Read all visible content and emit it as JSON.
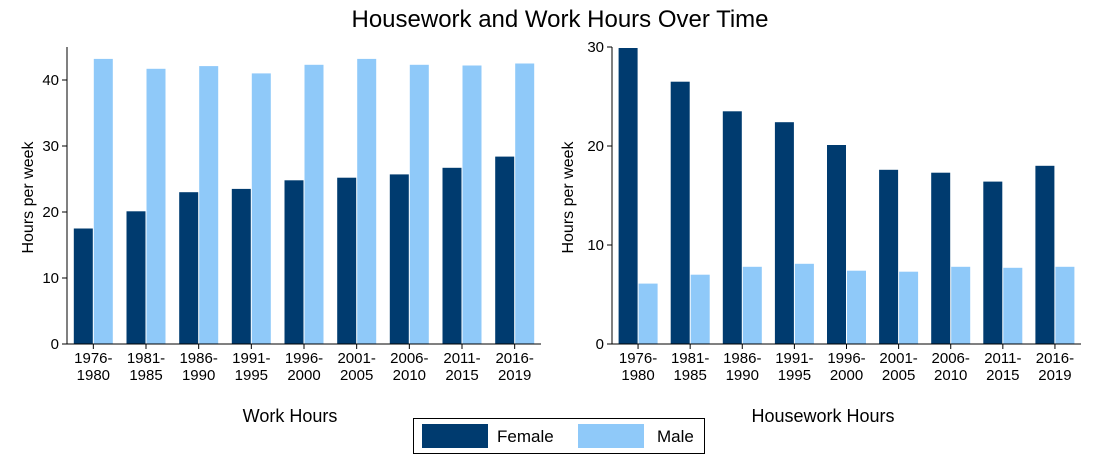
{
  "title": "Housework and Work Hours Over Time",
  "colors": {
    "female": "#003B6F",
    "male": "#8FC9F9"
  },
  "legend": {
    "female": "Female",
    "male": "Male"
  },
  "chart_data": [
    {
      "type": "bar",
      "title": "Work Hours",
      "ylabel": "Hours per week",
      "xlabel": "",
      "ylim": [
        0,
        45
      ],
      "yticks": [
        0,
        10,
        20,
        30,
        40
      ],
      "categories": [
        [
          "1976-",
          "1980"
        ],
        [
          "1981-",
          "1985"
        ],
        [
          "1986-",
          "1990"
        ],
        [
          "1991-",
          "1995"
        ],
        [
          "1996-",
          "2000"
        ],
        [
          "2001-",
          "2005"
        ],
        [
          "2006-",
          "2010"
        ],
        [
          "2011-",
          "2015"
        ],
        [
          "2016-",
          "2019"
        ]
      ],
      "series": [
        {
          "name": "Female",
          "values": [
            17.5,
            20.1,
            23.0,
            23.5,
            24.8,
            25.2,
            25.7,
            26.7,
            28.4
          ]
        },
        {
          "name": "Male",
          "values": [
            43.2,
            41.7,
            42.1,
            41.0,
            42.3,
            43.2,
            42.3,
            42.2,
            42.5
          ]
        }
      ],
      "legend": "bottom-center",
      "grid": false
    },
    {
      "type": "bar",
      "title": "Housework Hours",
      "ylabel": "Hours per week",
      "xlabel": "",
      "ylim": [
        0,
        30
      ],
      "yticks": [
        0,
        10,
        20,
        30
      ],
      "categories": [
        [
          "1976-",
          "1980"
        ],
        [
          "1981-",
          "1985"
        ],
        [
          "1986-",
          "1990"
        ],
        [
          "1991-",
          "1995"
        ],
        [
          "1996-",
          "2000"
        ],
        [
          "2001-",
          "2005"
        ],
        [
          "2006-",
          "2010"
        ],
        [
          "2011-",
          "2015"
        ],
        [
          "2016-",
          "2019"
        ]
      ],
      "series": [
        {
          "name": "Female",
          "values": [
            29.9,
            26.5,
            23.5,
            22.4,
            20.1,
            17.6,
            17.3,
            16.4,
            18.0
          ]
        },
        {
          "name": "Male",
          "values": [
            6.1,
            7.0,
            7.8,
            8.1,
            7.4,
            7.3,
            7.8,
            7.7,
            7.8
          ]
        }
      ],
      "legend": "bottom-center",
      "grid": false
    }
  ]
}
